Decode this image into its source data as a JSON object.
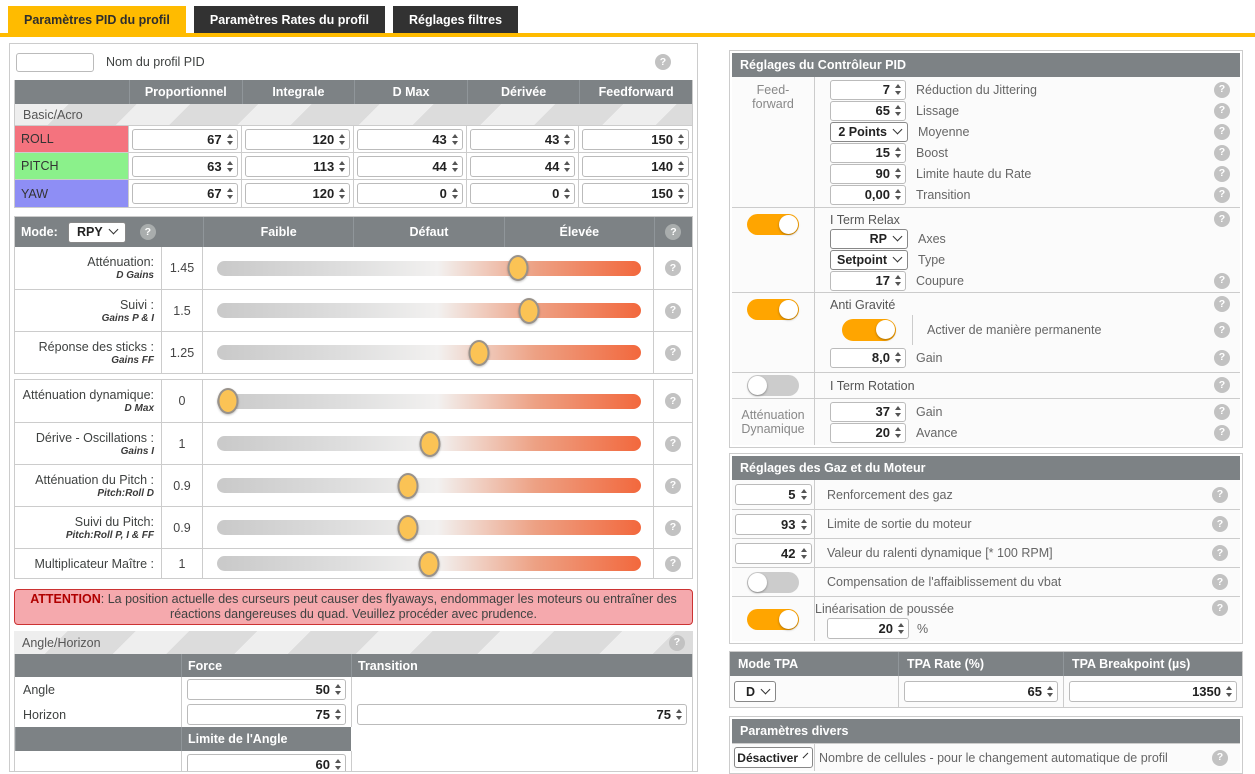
{
  "colors": {
    "accent": "#ffbb00",
    "toggle_on": "#ffa500",
    "header_gray": "#7d8285",
    "roll": "#f4737e",
    "pitch": "#8bf18b",
    "yaw": "#8e8ef5"
  },
  "tabs": [
    {
      "label": "Paramètres PID du profil",
      "active": true
    },
    {
      "label": "Paramètres Rates du profil",
      "active": false
    },
    {
      "label": "Réglages filtres",
      "active": false
    }
  ],
  "profile": {
    "name_value": "",
    "name_label": "Nom du profil PID"
  },
  "pid_table": {
    "headers": [
      "Proportionnel",
      "Integrale",
      "D Max",
      "Dérivée",
      "Feedforward"
    ],
    "section": "Basic/Acro",
    "rows": [
      {
        "axis": "ROLL",
        "color": "#f4737e",
        "values": [
          "67",
          "120",
          "43",
          "43",
          "150"
        ]
      },
      {
        "axis": "PITCH",
        "color": "#8bf18b",
        "values": [
          "63",
          "113",
          "44",
          "44",
          "140"
        ]
      },
      {
        "axis": "YAW",
        "color": "#8e8ef5",
        "values": [
          "67",
          "120",
          "0",
          "0",
          "150"
        ]
      }
    ]
  },
  "sliders": {
    "mode_label": "Mode:",
    "mode_value": "RPY",
    "col_headers": [
      "Faible",
      "Défaut",
      "Élevée"
    ],
    "group1": [
      {
        "label": "Atténuation:",
        "sub": "D Gains",
        "value": "1.45",
        "frac": 0.711
      },
      {
        "label": "Suivi :",
        "sub": "Gains P & I",
        "value": "1.5",
        "frac": 0.735
      },
      {
        "label": "Réponse des sticks :",
        "sub": "Gains FF",
        "value": "1.25",
        "frac": 0.617
      }
    ],
    "group2": [
      {
        "label": "Atténuation dynamique:",
        "sub": "D Max",
        "value": "0",
        "frac": 0.0
      },
      {
        "label": "Dérive - Oscillations :",
        "sub": "Gains I",
        "value": "1",
        "frac": 0.502
      },
      {
        "label": "Atténuation du Pitch :",
        "sub": "Pitch:Roll D",
        "value": "0.9",
        "frac": 0.45
      },
      {
        "label": "Suivi du Pitch:",
        "sub": "Pitch:Roll P, I & FF",
        "value": "0.9",
        "frac": 0.45
      },
      {
        "label": "Multiplicateur Maître :",
        "sub": "",
        "value": "1",
        "frac": 0.5
      }
    ]
  },
  "warning": {
    "prefix": "ATTENTION",
    "text": ": La position actuelle des curseurs peut causer des flyaways, endommager les moteurs ou entraîner des réactions dangereuses du quad. Veuillez procéder avec prudence."
  },
  "angle_horizon": {
    "title": "Angle/Horizon",
    "col_headers": [
      "Force",
      "Transition"
    ],
    "rows": [
      {
        "label": "Angle",
        "force": "50"
      },
      {
        "label": "Horizon",
        "force": "75",
        "transition": "75"
      }
    ],
    "limit_header": "Limite de l'Angle",
    "limit_value": "60"
  },
  "pid_controller": {
    "title": "Réglages du Contrôleur PID",
    "feedforward": {
      "group_label": "Feed-forward",
      "rows": [
        {
          "value": "7",
          "label": "Réduction du Jittering"
        },
        {
          "value": "65",
          "label": "Lissage"
        },
        {
          "value": "2 Points",
          "label": "Moyenne",
          "select": true
        },
        {
          "value": "15",
          "label": "Boost"
        },
        {
          "value": "90",
          "label": "Limite haute du Rate"
        },
        {
          "value": "0,00",
          "label": "Transition"
        }
      ]
    },
    "iterm_relax": {
      "on": true,
      "label": "I Term Relax",
      "axes": {
        "value": "RP",
        "label": "Axes"
      },
      "type": {
        "value": "Setpoint",
        "label": "Type"
      },
      "cutoff": {
        "value": "17",
        "label": "Coupure"
      }
    },
    "anti_gravity": {
      "on": true,
      "label": "Anti Gravité",
      "permanent": {
        "on": true,
        "label": "Activer de manière permanente"
      },
      "gain": {
        "value": "8,0",
        "label": "Gain"
      }
    },
    "iterm_rotation": {
      "on": false,
      "label": "I Term Rotation"
    },
    "dyn_damp": {
      "label_line1": "Atténuation",
      "label_line2": "Dynamique",
      "gain": {
        "value": "37",
        "label": "Gain"
      },
      "advance": {
        "value": "20",
        "label": "Avance"
      }
    }
  },
  "motor": {
    "title": "Réglages des Gaz et du Moteur",
    "rows": [
      {
        "type": "input",
        "value": "5",
        "label": "Renforcement des gaz"
      },
      {
        "type": "input",
        "value": "93",
        "label": "Limite de sortie du moteur"
      },
      {
        "type": "input",
        "value": "42",
        "label": "Valeur du ralenti dynamique [* 100 RPM]"
      },
      {
        "type": "toggle",
        "on": false,
        "label": "Compensation de l'affaiblissement du vbat"
      },
      {
        "type": "toggle",
        "on": true,
        "label": "Linéarisation de poussée",
        "extra_value": "20",
        "extra_label": "%"
      }
    ]
  },
  "tpa": {
    "headers": [
      "Mode TPA",
      "TPA Rate (%)",
      "TPA Breakpoint (µs)"
    ],
    "mode": "D",
    "rate": "65",
    "breakpoint": "1350"
  },
  "misc": {
    "title": "Paramètres divers",
    "value": "Désactiver",
    "label": "Nombre de cellules - pour le changement automatique de profil"
  }
}
